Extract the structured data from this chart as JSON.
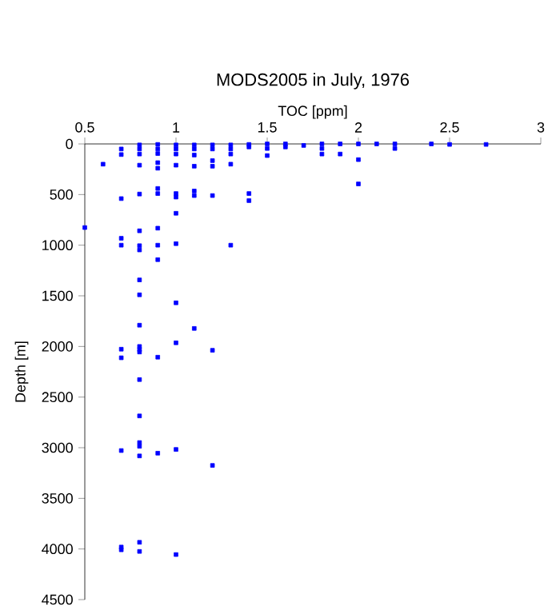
{
  "chart_data": {
    "type": "scatter",
    "title": "MODS2005 in July, 1976",
    "xlabel": "TOC [ppm]",
    "ylabel": "Depth [m]",
    "series": [
      {
        "color": "#0000ff",
        "x": [
          0.6,
          0.7,
          0.7,
          0.7,
          0.8,
          0.8,
          0.8,
          0.8,
          0.8,
          0.9,
          0.9,
          0.9,
          0.9,
          0.9,
          0.9,
          0.9,
          1.0,
          1.0,
          1.0,
          1.0,
          1.0,
          1.0,
          1.0,
          1.1,
          1.1,
          1.1,
          1.1,
          1.1,
          1.1,
          1.2,
          1.2,
          1.2,
          1.2,
          1.2,
          1.3,
          1.3,
          1.3,
          1.3,
          1.4,
          1.4,
          1.4,
          1.4,
          1.5,
          1.5,
          1.5,
          1.6,
          1.6,
          1.7,
          1.8,
          1.8,
          1.8,
          1.9,
          1.9,
          2.0,
          2.0,
          2.0,
          2.1,
          2.2,
          2.2,
          2.4,
          2.5,
          2.7,
          0.5,
          0.7,
          0.7,
          0.7,
          0.7,
          0.8,
          0.8,
          0.8,
          0.8,
          0.8,
          0.8,
          0.8,
          0.8,
          0.8,
          0.8,
          0.9,
          0.9,
          0.9,
          0.9,
          1.0,
          1.0,
          1.0,
          1.1,
          1.2,
          1.3,
          0.8,
          0.8,
          0.8,
          0.8,
          0.7,
          0.7,
          0.7,
          0.9,
          1.0,
          1.0,
          1.2,
          0.8,
          0.8
        ],
        "values": [
          200,
          50,
          105,
          540,
          10,
          50,
          100,
          210,
          495,
          5,
          50,
          95,
          185,
          240,
          440,
          490,
          10,
          50,
          100,
          210,
          490,
          525,
          685,
          10,
          50,
          110,
          220,
          465,
          510,
          10,
          50,
          165,
          220,
          510,
          10,
          50,
          100,
          200,
          5,
          30,
          490,
          560,
          0,
          45,
          115,
          0,
          30,
          15,
          0,
          45,
          100,
          0,
          100,
          0,
          155,
          395,
          0,
          0,
          45,
          0,
          5,
          5,
          826,
          932,
          1000,
          2027,
          2112,
          858,
          1005,
          1047,
          1343,
          1490,
          1790,
          2000,
          2030,
          2055,
          2327,
          832,
          1000,
          1143,
          2106,
          985,
          1569,
          1964,
          1822,
          2038,
          1000,
          2686,
          2949,
          2986,
          3081,
          3028,
          3981,
          4008,
          3054,
          3017,
          4055,
          3175,
          3934,
          4024
        ]
      }
    ],
    "marker": "square",
    "xlim": [
      0.5,
      3
    ],
    "xticks": [
      0.5,
      1,
      1.5,
      2,
      2.5,
      3
    ],
    "ylim": [
      4500,
      0
    ],
    "yticks": [
      0,
      500,
      1000,
      1500,
      2000,
      2500,
      3000,
      3500,
      4000,
      4500
    ]
  }
}
